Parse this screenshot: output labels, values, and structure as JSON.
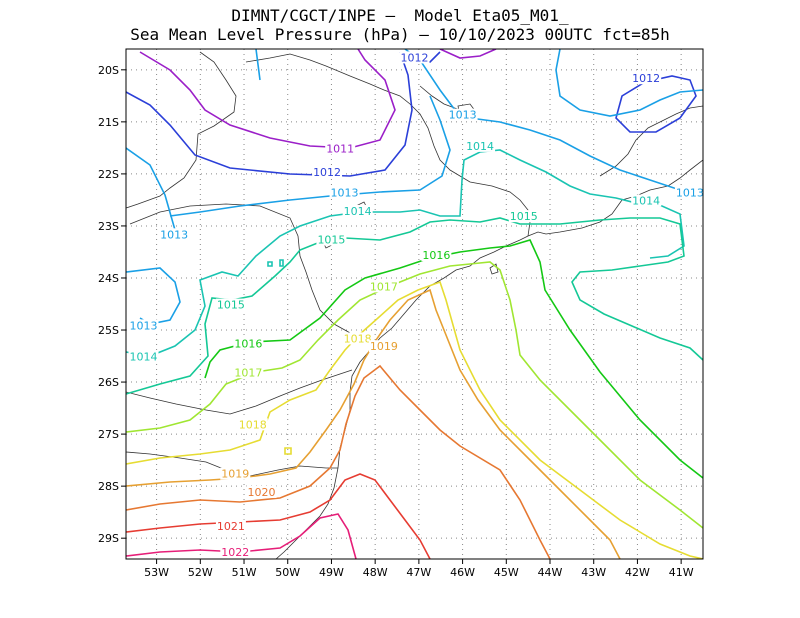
{
  "title_line1": "DIMNT/CGCT/INPE –  Model Eta05_M01_",
  "title_line2": "Sea Mean Level Pressure (hPa) – 10/10/2023 00UTC fct=85h",
  "lon_labels": [
    "53W",
    "52W",
    "51W",
    "50W",
    "49W",
    "48W",
    "47W",
    "46W",
    "45W",
    "44W",
    "43W",
    "42W",
    "41W"
  ],
  "lat_labels": [
    "20S",
    "21S",
    "22S",
    "23S",
    "24S",
    "25S",
    "26S",
    "27S",
    "28S",
    "29S"
  ],
  "colors": {
    "c1011": "#9b1fc8",
    "c1012": "#2b3fd8",
    "c1013": "#1aa0e6",
    "c1014": "#1ac4b2",
    "c1015": "#14c896",
    "c1016": "#14c814",
    "c1017": "#a0e632",
    "c1018": "#e6dc32",
    "c1019": "#e6a032",
    "c1020": "#e67832",
    "c1021": "#e63c32",
    "c1022": "#e61e78"
  },
  "contour_labels": [
    {
      "text": "1011",
      "lon": -48.8,
      "lat": -21.55,
      "color": "c1011"
    },
    {
      "text": "1012",
      "lon": -47.1,
      "lat": -19.8,
      "color": "c1012"
    },
    {
      "text": "1012",
      "lon": -41.8,
      "lat": -20.2,
      "color": "c1012"
    },
    {
      "text": "1012",
      "lon": -49.1,
      "lat": -22.0,
      "color": "c1012"
    },
    {
      "text": "1013",
      "lon": -46.0,
      "lat": -20.9,
      "color": "c1013"
    },
    {
      "text": "1013",
      "lon": -48.7,
      "lat": -22.4,
      "color": "c1013"
    },
    {
      "text": "1013",
      "lon": -52.6,
      "lat": -23.2,
      "color": "c1013"
    },
    {
      "text": "1013",
      "lon": -53.3,
      "lat": -24.95,
      "color": "c1013"
    },
    {
      "text": "1013",
      "lon": -40.8,
      "lat": -22.4,
      "color": "c1013"
    },
    {
      "text": "1014",
      "lon": -45.6,
      "lat": -21.5,
      "color": "c1014"
    },
    {
      "text": "1014",
      "lon": -48.4,
      "lat": -22.75,
      "color": "c1014"
    },
    {
      "text": "1014",
      "lon": -41.8,
      "lat": -22.55,
      "color": "c1014"
    },
    {
      "text": "1014",
      "lon": -53.3,
      "lat": -25.55,
      "color": "c1014"
    },
    {
      "text": "1015",
      "lon": -49.0,
      "lat": -23.3,
      "color": "c1015"
    },
    {
      "text": "1015",
      "lon": -44.6,
      "lat": -22.85,
      "color": "c1015"
    },
    {
      "text": "1015",
      "lon": -51.3,
      "lat": -24.55,
      "color": "c1015"
    },
    {
      "text": "1016",
      "lon": -46.6,
      "lat": -23.6,
      "color": "c1016"
    },
    {
      "text": "1016",
      "lon": -50.9,
      "lat": -25.3,
      "color": "c1016"
    },
    {
      "text": "1017",
      "lon": -47.8,
      "lat": -24.2,
      "color": "c1017"
    },
    {
      "text": "1017",
      "lon": -50.9,
      "lat": -25.85,
      "color": "c1017"
    },
    {
      "text": "1018",
      "lon": -48.4,
      "lat": -25.2,
      "color": "c1018"
    },
    {
      "text": "1018",
      "lon": -50.8,
      "lat": -26.85,
      "color": "c1018"
    },
    {
      "text": "1019",
      "lon": -47.8,
      "lat": -25.35,
      "color": "c1019"
    },
    {
      "text": "1019",
      "lon": -51.2,
      "lat": -27.8,
      "color": "c1019"
    },
    {
      "text": "1020",
      "lon": -50.6,
      "lat": -28.15,
      "color": "c1020"
    },
    {
      "text": "1021",
      "lon": -51.3,
      "lat": -28.8,
      "color": "c1021"
    },
    {
      "text": "1022",
      "lon": -51.2,
      "lat": -29.3,
      "color": "c1022"
    }
  ]
}
